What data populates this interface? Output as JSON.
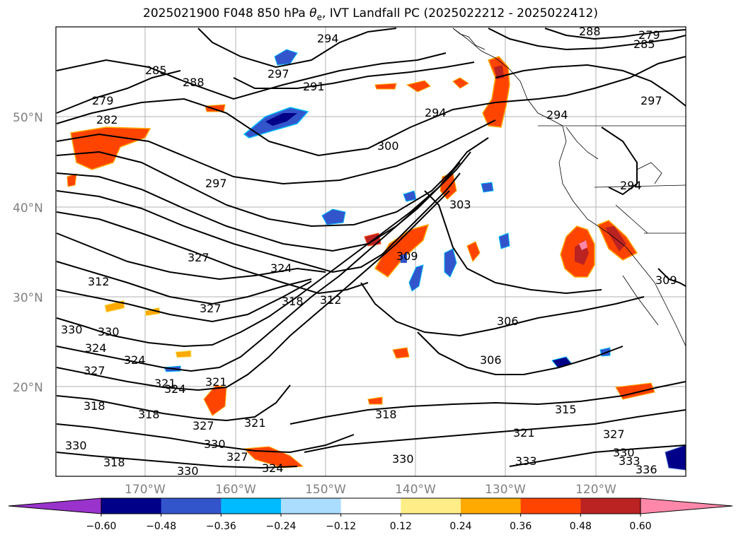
{
  "title_prefix": "2025021900 F048 850 hPa ",
  "title_symbol": "θ",
  "title_subscript": "e",
  "title_suffix": ", IVT Landfall PC (2025022212 - 2025022412)",
  "lat_labels": [
    "50°N",
    "40°N",
    "30°N",
    "20°N"
  ],
  "lon_labels": [
    "170°W",
    "160°W",
    "150°W",
    "140°W",
    "130°W",
    "120°W"
  ],
  "contour_labels": [
    "294",
    "297",
    "291",
    "285",
    "288",
    "279",
    "282",
    "288",
    "279",
    "285",
    "294",
    "297",
    "294",
    "300",
    "297",
    "303",
    "294",
    "327",
    "324",
    "312",
    "327",
    "318",
    "312",
    "309",
    "306",
    "306",
    "330",
    "330",
    "324",
    "324",
    "327",
    "321",
    "324",
    "318",
    "321",
    "327",
    "318",
    "330",
    "318",
    "330",
    "318",
    "321",
    "330",
    "327",
    "324",
    "330",
    "315",
    "321",
    "327",
    "333",
    "330",
    "333",
    "336",
    "309"
  ],
  "colorbar": {
    "colors": [
      "#9933cc",
      "#000088",
      "#3355cc",
      "#00bbff",
      "#aaddff",
      "#ffffff",
      "#ffee88",
      "#ffaa00",
      "#ff4400",
      "#bb2222",
      "#ff88aa"
    ],
    "ticks": [
      "−0.60",
      "−0.48",
      "−0.36",
      "−0.24",
      "−0.12",
      "0.12",
      "0.24",
      "0.36",
      "0.48",
      "0.60"
    ]
  },
  "chart_data": {
    "type": "map",
    "variable": "850 hPa θe contours with IVT Landfall PC shading",
    "extent": {
      "lon": [
        -180,
        -110
      ],
      "lat": [
        10,
        60
      ]
    },
    "contour_levels": [
      279,
      282,
      285,
      288,
      291,
      294,
      297,
      300,
      303,
      306,
      309,
      312,
      315,
      318,
      321,
      324,
      327,
      330,
      333,
      336
    ],
    "shading_levels": [
      -0.6,
      -0.48,
      -0.36,
      -0.24,
      -0.12,
      0.12,
      0.24,
      0.36,
      0.48,
      0.6
    ]
  }
}
